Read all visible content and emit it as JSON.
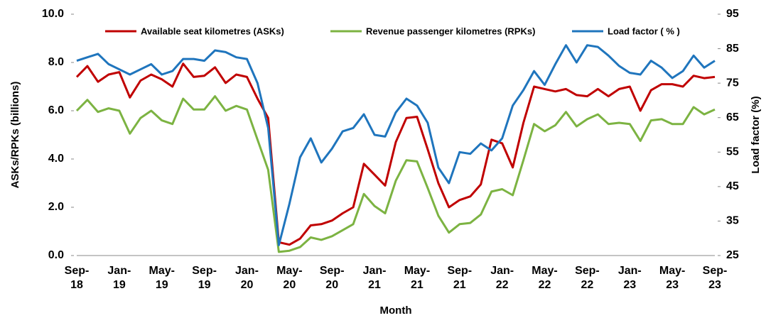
{
  "chart_data": {
    "type": "line",
    "categories": [
      "Sep-18",
      null,
      null,
      null,
      "Jan-19",
      null,
      null,
      null,
      "May-19",
      null,
      null,
      null,
      "Sep-19",
      null,
      null,
      null,
      "Jan-20",
      null,
      null,
      null,
      "May-20",
      null,
      null,
      null,
      "Sep-20",
      null,
      null,
      null,
      "Jan-21",
      null,
      null,
      null,
      "May-21",
      null,
      null,
      null,
      "Sep-21",
      null,
      null,
      null,
      "Jan-22",
      null,
      null,
      null,
      "May-22",
      null,
      null,
      null,
      "Sep-22",
      null,
      null,
      null,
      "Jan-23",
      null,
      null,
      null,
      "May-23",
      null,
      null,
      null,
      "Sep-23"
    ],
    "series": [
      {
        "name": "Available seat kilometres (ASKs)",
        "color": "#c00000",
        "values": [
          7.4,
          7.85,
          7.2,
          7.5,
          7.6,
          6.55,
          7.25,
          7.5,
          7.3,
          7.0,
          7.95,
          7.4,
          7.45,
          7.8,
          7.15,
          7.5,
          7.4,
          6.5,
          5.7,
          0.55,
          0.45,
          0.7,
          1.25,
          1.3,
          1.45,
          1.75,
          2.0,
          3.8,
          3.35,
          2.9,
          4.7,
          5.7,
          5.75,
          4.4,
          3.0,
          2.0,
          2.3,
          2.45,
          2.95,
          4.8,
          4.65,
          3.65,
          5.5,
          7.0,
          6.9,
          6.8,
          6.9,
          6.65,
          6.6,
          6.9,
          6.6,
          6.9,
          7.0,
          6.0,
          6.85,
          7.1,
          7.1,
          7.0,
          7.45,
          7.35,
          7.4
        ]
      },
      {
        "name": "Revenue passenger kilometres (RPKs)",
        "color": "#7cb342",
        "values": [
          6.0,
          6.45,
          5.95,
          6.1,
          6.0,
          5.05,
          5.7,
          6.0,
          5.6,
          5.45,
          6.5,
          6.05,
          6.05,
          6.6,
          6.0,
          6.2,
          6.05,
          4.8,
          3.55,
          0.15,
          0.2,
          0.35,
          0.75,
          0.65,
          0.8,
          1.05,
          1.3,
          2.55,
          2.05,
          1.75,
          3.1,
          3.95,
          3.9,
          2.8,
          1.65,
          0.95,
          1.3,
          1.35,
          1.7,
          2.65,
          2.75,
          2.5,
          3.95,
          5.45,
          5.15,
          5.4,
          5.95,
          5.35,
          5.65,
          5.85,
          5.45,
          5.5,
          5.45,
          4.75,
          5.6,
          5.65,
          5.45,
          5.45,
          6.15,
          5.85,
          6.05
        ]
      },
      {
        "name": "Load factor ( % )",
        "color": "#1f75bd",
        "axis": "y2",
        "values": [
          81.5,
          82.5,
          83.5,
          80.5,
          79,
          77.5,
          79,
          80.5,
          77.5,
          78.5,
          82,
          82,
          81.5,
          84.5,
          84,
          82.5,
          82,
          75,
          62,
          28,
          40,
          53.5,
          59,
          52,
          56,
          61,
          62,
          66,
          60,
          59.5,
          66.5,
          70.5,
          68.5,
          63.5,
          50.5,
          46,
          55,
          54.5,
          57.5,
          55.5,
          59,
          68.5,
          73,
          78.5,
          74.5,
          80.5,
          86,
          81,
          86,
          85.5,
          83,
          80,
          78,
          77.5,
          81.5,
          79.5,
          76.5,
          78.5,
          83,
          79.5,
          81.5
        ]
      }
    ],
    "ylabel": "ASKs/RPKs (billions)",
    "y2label": "Load factor (%)",
    "xlabel": "Month",
    "ylim": [
      0,
      10
    ],
    "yticks": [
      {
        "value": 0,
        "label": "0.0"
      },
      {
        "value": 2,
        "label": "2.0"
      },
      {
        "value": 4,
        "label": "4.0"
      },
      {
        "value": 6,
        "label": "6.0"
      },
      {
        "value": 8,
        "label": "8.0"
      },
      {
        "value": 10,
        "label": "10.0"
      }
    ],
    "y2lim": [
      25,
      95
    ],
    "y2ticks": [
      25,
      35,
      45,
      55,
      65,
      75,
      85,
      95
    ],
    "legend": "top",
    "grid": false
  }
}
